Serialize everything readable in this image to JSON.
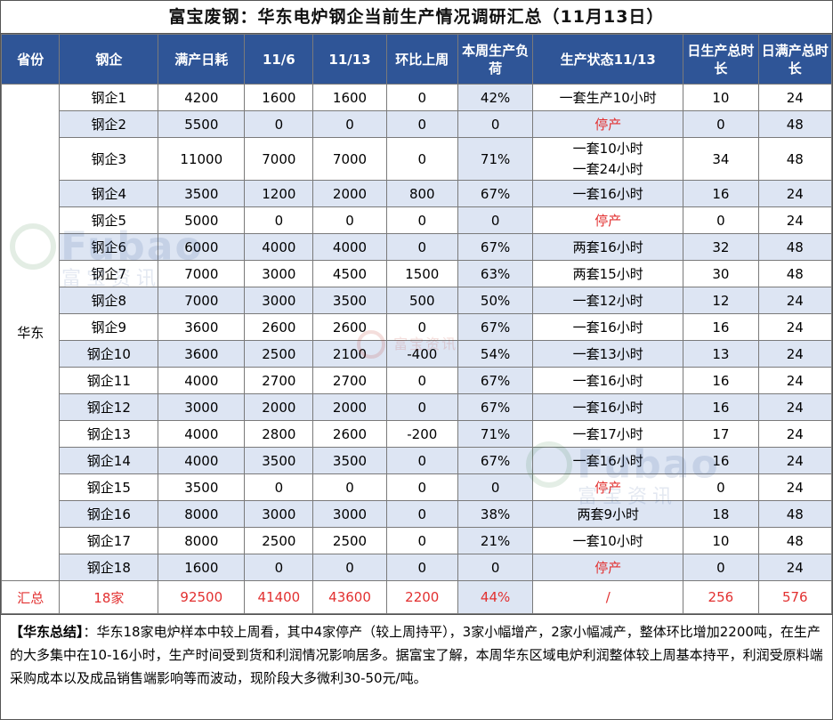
{
  "title": "富宝废钢：华东电炉钢企当前生产情况调研汇总（11月13日）",
  "headers": [
    "省份",
    "钢企",
    "满产日耗",
    "11/6",
    "11/13",
    "环比上周",
    "本周生产负荷",
    "生产状态11/13",
    "日生产总时长",
    "日满产总时长"
  ],
  "province": "华东",
  "rows": [
    {
      "name": "钢企1",
      "full": "4200",
      "prev": "1600",
      "cur": "1600",
      "chg": "0",
      "load": "42%",
      "status": [
        "一套生产10小时"
      ],
      "hours": "10",
      "full_hours": "24"
    },
    {
      "name": "钢企2",
      "full": "5500",
      "prev": "0",
      "cur": "0",
      "chg": "0",
      "load": "0",
      "status": [
        "停产"
      ],
      "hours": "0",
      "full_hours": "48"
    },
    {
      "name": "钢企3",
      "full": "11000",
      "prev": "7000",
      "cur": "7000",
      "chg": "0",
      "load": "71%",
      "status": [
        "一套10小时",
        "一套24小时"
      ],
      "hours": "34",
      "full_hours": "48"
    },
    {
      "name": "钢企4",
      "full": "3500",
      "prev": "1200",
      "cur": "2000",
      "chg": "800",
      "load": "67%",
      "status": [
        "一套16小时"
      ],
      "hours": "16",
      "full_hours": "24"
    },
    {
      "name": "钢企5",
      "full": "5000",
      "prev": "0",
      "cur": "0",
      "chg": "0",
      "load": "0",
      "status": [
        "停产"
      ],
      "hours": "0",
      "full_hours": "24"
    },
    {
      "name": "钢企6",
      "full": "6000",
      "prev": "4000",
      "cur": "4000",
      "chg": "0",
      "load": "67%",
      "status": [
        "两套16小时"
      ],
      "hours": "32",
      "full_hours": "48"
    },
    {
      "name": "钢企7",
      "full": "7000",
      "prev": "3000",
      "cur": "4500",
      "chg": "1500",
      "load": "63%",
      "status": [
        "两套15小时"
      ],
      "hours": "30",
      "full_hours": "48"
    },
    {
      "name": "钢企8",
      "full": "7000",
      "prev": "3000",
      "cur": "3500",
      "chg": "500",
      "load": "50%",
      "status": [
        "一套12小时"
      ],
      "hours": "12",
      "full_hours": "24"
    },
    {
      "name": "钢企9",
      "full": "3600",
      "prev": "2600",
      "cur": "2600",
      "chg": "0",
      "load": "67%",
      "status": [
        "一套16小时"
      ],
      "hours": "16",
      "full_hours": "24"
    },
    {
      "name": "钢企10",
      "full": "3600",
      "prev": "2500",
      "cur": "2100",
      "chg": "-400",
      "load": "54%",
      "status": [
        "一套13小时"
      ],
      "hours": "13",
      "full_hours": "24"
    },
    {
      "name": "钢企11",
      "full": "4000",
      "prev": "2700",
      "cur": "2700",
      "chg": "0",
      "load": "67%",
      "status": [
        "一套16小时"
      ],
      "hours": "16",
      "full_hours": "24"
    },
    {
      "name": "钢企12",
      "full": "3000",
      "prev": "2000",
      "cur": "2000",
      "chg": "0",
      "load": "67%",
      "status": [
        "一套16小时"
      ],
      "hours": "16",
      "full_hours": "24"
    },
    {
      "name": "钢企13",
      "full": "4000",
      "prev": "2800",
      "cur": "2600",
      "chg": "-200",
      "load": "71%",
      "status": [
        "一套17小时"
      ],
      "hours": "17",
      "full_hours": "24"
    },
    {
      "name": "钢企14",
      "full": "4000",
      "prev": "3500",
      "cur": "3500",
      "chg": "0",
      "load": "67%",
      "status": [
        "一套16小时"
      ],
      "hours": "16",
      "full_hours": "24"
    },
    {
      "name": "钢企15",
      "full": "3500",
      "prev": "0",
      "cur": "0",
      "chg": "0",
      "load": "0",
      "status": [
        "停产"
      ],
      "hours": "0",
      "full_hours": "24"
    },
    {
      "name": "钢企16",
      "full": "8000",
      "prev": "3000",
      "cur": "3000",
      "chg": "0",
      "load": "38%",
      "status": [
        "两套9小时"
      ],
      "hours": "18",
      "full_hours": "48"
    },
    {
      "name": "钢企17",
      "full": "8000",
      "prev": "2500",
      "cur": "2500",
      "chg": "0",
      "load": "21%",
      "status": [
        "一套10小时"
      ],
      "hours": "10",
      "full_hours": "48"
    },
    {
      "name": "钢企18",
      "full": "1600",
      "prev": "0",
      "cur": "0",
      "chg": "0",
      "load": "0",
      "status": [
        "停产"
      ],
      "hours": "0",
      "full_hours": "24"
    }
  ],
  "total": {
    "label": "汇总",
    "name": "18家",
    "full": "92500",
    "prev": "41400",
    "cur": "43600",
    "chg": "2200",
    "load": "44%",
    "status": "/",
    "hours": "256",
    "full_hours": "576"
  },
  "summary": {
    "label": "【华东总结】",
    "text": "：华东18家电炉样本中较上周看，其中4家停产（较上周持平），3家小幅增产，2家小幅减产，整体环比增加2200吨，在生产的大多集中在10-16小时，生产时间受到货和利润情况影响居多。据富宝了解，本周华东区域电炉利润整体较上周基本持平，利润受原料端采购成本以及成品销售端影响等而波动，现阶段大多微利30-50元/吨。"
  },
  "watermark": {
    "en": "Fubao",
    "cn": "富宝资讯"
  },
  "colors": {
    "header_bg": "#2f5597",
    "shade": "#dde5f3",
    "stop_red": "#e23030"
  }
}
